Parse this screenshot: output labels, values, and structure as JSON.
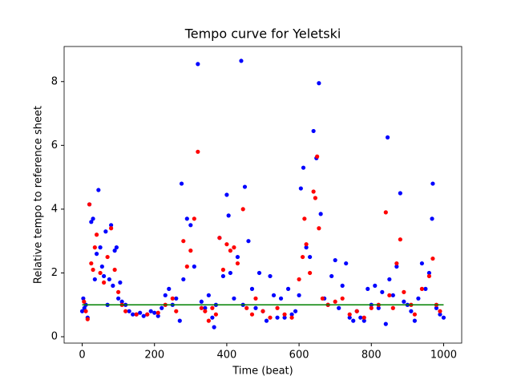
{
  "chart_data": {
    "type": "scatter",
    "title": "Tempo curve for Yeletski",
    "xlabel": "Time (beat)",
    "ylabel": "Relative tempo to reference sheet",
    "xlim": [
      -50,
      1050
    ],
    "ylim": [
      -0.2,
      9.1
    ],
    "xticks": [
      0,
      200,
      400,
      600,
      800,
      1000
    ],
    "yticks": [
      0,
      2,
      4,
      6,
      8
    ],
    "series": [
      {
        "color": "#0000ff",
        "x": [
          0,
          3,
          6,
          10,
          15,
          20,
          25,
          30,
          35,
          40,
          45,
          50,
          55,
          60,
          65,
          70,
          75,
          80,
          85,
          90,
          95,
          100,
          105,
          110,
          120,
          130,
          140,
          150,
          160,
          170,
          180,
          190,
          200,
          210,
          220,
          230,
          240,
          250,
          260,
          270,
          275,
          280,
          290,
          300,
          310,
          320,
          330,
          340,
          350,
          360,
          365,
          370,
          380,
          390,
          400,
          405,
          410,
          420,
          430,
          440,
          445,
          450,
          460,
          470,
          480,
          490,
          500,
          510,
          520,
          530,
          540,
          550,
          560,
          570,
          580,
          590,
          600,
          605,
          612,
          620,
          630,
          640,
          648,
          655,
          660,
          670,
          680,
          690,
          700,
          710,
          720,
          730,
          740,
          750,
          760,
          770,
          780,
          790,
          800,
          810,
          820,
          830,
          840,
          845,
          850,
          860,
          870,
          880,
          890,
          900,
          910,
          920,
          930,
          940,
          950,
          960,
          968,
          970,
          980,
          990,
          1000
        ],
        "values": [
          0.8,
          1.2,
          0.9,
          1.0,
          0.6,
          4.15,
          3.6,
          3.7,
          1.8,
          2.6,
          4.6,
          2.8,
          2.2,
          1.9,
          3.3,
          1.0,
          1.8,
          3.5,
          1.6,
          2.7,
          2.8,
          1.2,
          1.7,
          1.1,
          1.0,
          0.8,
          0.7,
          0.7,
          0.75,
          0.65,
          0.7,
          0.8,
          0.75,
          0.65,
          0.9,
          1.3,
          1.5,
          1.0,
          1.2,
          0.5,
          4.8,
          1.8,
          3.7,
          3.5,
          2.2,
          8.55,
          1.1,
          0.9,
          1.3,
          0.6,
          0.3,
          1.0,
          3.1,
          1.9,
          4.45,
          3.8,
          2.0,
          1.2,
          2.5,
          8.65,
          1.0,
          4.7,
          3.0,
          1.5,
          0.9,
          2.0,
          0.8,
          0.5,
          1.9,
          1.3,
          0.6,
          1.2,
          0.6,
          1.5,
          0.7,
          0.8,
          1.3,
          4.65,
          5.3,
          2.8,
          2.5,
          6.45,
          5.6,
          7.95,
          3.85,
          1.2,
          1.0,
          1.9,
          2.4,
          0.9,
          1.6,
          2.3,
          0.6,
          0.5,
          0.8,
          0.6,
          0.5,
          1.5,
          1.0,
          1.6,
          0.9,
          1.4,
          0.4,
          6.25,
          1.8,
          1.3,
          2.2,
          4.5,
          1.1,
          1.0,
          0.8,
          0.5,
          1.2,
          2.3,
          1.5,
          2.0,
          3.7,
          4.8,
          0.9,
          0.7,
          0.6
        ]
      },
      {
        "color": "#ff0000",
        "x": [
          5,
          10,
          15,
          20,
          25,
          30,
          35,
          40,
          50,
          60,
          70,
          80,
          90,
          100,
          110,
          120,
          150,
          180,
          210,
          230,
          250,
          260,
          280,
          290,
          300,
          310,
          320,
          330,
          340,
          350,
          360,
          370,
          380,
          390,
          400,
          410,
          420,
          430,
          445,
          455,
          470,
          480,
          500,
          520,
          540,
          560,
          580,
          600,
          610,
          615,
          620,
          630,
          640,
          645,
          650,
          655,
          665,
          680,
          700,
          720,
          740,
          760,
          780,
          800,
          820,
          840,
          850,
          860,
          870,
          880,
          890,
          910,
          920,
          940,
          960,
          970,
          980,
          990
        ],
        "values": [
          1.1,
          0.8,
          0.55,
          4.15,
          2.3,
          2.1,
          2.8,
          3.2,
          2.0,
          1.7,
          2.5,
          3.4,
          2.1,
          1.4,
          1.0,
          0.8,
          0.7,
          0.7,
          0.75,
          1.0,
          1.2,
          0.8,
          3.0,
          2.2,
          2.7,
          3.7,
          5.8,
          0.9,
          0.8,
          0.5,
          0.9,
          0.7,
          3.1,
          2.1,
          2.9,
          2.7,
          2.8,
          2.3,
          4.0,
          0.9,
          0.7,
          1.2,
          0.8,
          0.6,
          0.9,
          0.7,
          0.6,
          1.8,
          2.5,
          3.7,
          2.9,
          2.0,
          4.55,
          4.35,
          5.65,
          3.4,
          1.2,
          1.0,
          1.1,
          1.2,
          0.7,
          0.8,
          0.6,
          0.9,
          1.0,
          3.9,
          1.3,
          0.9,
          2.3,
          3.05,
          1.4,
          1.0,
          0.7,
          1.5,
          1.9,
          2.45,
          1.0,
          0.8
        ]
      }
    ],
    "reference_line": {
      "color": "#008000",
      "x": [
        0,
        1000
      ],
      "values": [
        1,
        1
      ]
    }
  }
}
